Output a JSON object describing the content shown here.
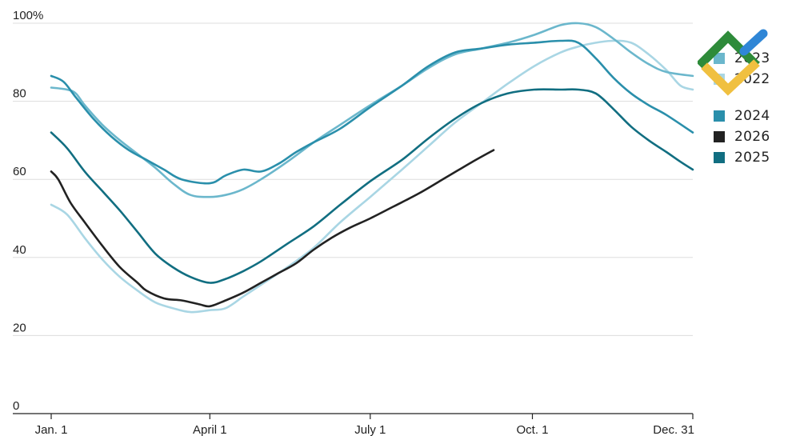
{
  "chart_data": {
    "type": "line",
    "title": "",
    "xlabel": "",
    "ylabel": "",
    "y_unit_suffix": "%",
    "ylim": [
      0,
      100
    ],
    "xlim": [
      "Jan. 1",
      "Dec. 31"
    ],
    "x_unit": "day-of-year",
    "x_ticks": [
      {
        "label": "Jan. 1",
        "day": 1
      },
      {
        "label": "April 1",
        "day": 91
      },
      {
        "label": "July 1",
        "day": 182
      },
      {
        "label": "Oct. 1",
        "day": 274
      },
      {
        "label": "Dec. 31",
        "day": 365
      }
    ],
    "y_ticks": [
      {
        "label": "0",
        "value": 0
      },
      {
        "label": "20",
        "value": 20
      },
      {
        "label": "40",
        "value": 40
      },
      {
        "label": "60",
        "value": 60
      },
      {
        "label": "80",
        "value": 80
      },
      {
        "label": "100%",
        "value": 100
      }
    ],
    "grid": "horizontal",
    "legend_placement": "right",
    "series": [
      {
        "name": "2022",
        "color": "#a9d6e4",
        "points": [
          [
            1,
            53.5
          ],
          [
            10,
            51
          ],
          [
            20,
            45
          ],
          [
            30,
            39.5
          ],
          [
            40,
            35
          ],
          [
            50,
            31.5
          ],
          [
            60,
            28.5
          ],
          [
            70,
            27
          ],
          [
            80,
            26
          ],
          [
            91,
            26.5
          ],
          [
            100,
            27
          ],
          [
            110,
            30
          ],
          [
            120,
            33
          ],
          [
            135,
            37.5
          ],
          [
            150,
            42.5
          ],
          [
            165,
            49
          ],
          [
            182,
            55.5
          ],
          [
            200,
            62.5
          ],
          [
            215,
            68.5
          ],
          [
            230,
            74.5
          ],
          [
            245,
            79.5
          ],
          [
            260,
            84.5
          ],
          [
            275,
            89
          ],
          [
            290,
            92.5
          ],
          [
            300,
            94
          ],
          [
            310,
            95
          ],
          [
            320,
            95.5
          ],
          [
            330,
            95
          ],
          [
            340,
            92
          ],
          [
            350,
            88
          ],
          [
            358,
            84
          ],
          [
            365,
            83
          ]
        ]
      },
      {
        "name": "2023",
        "color": "#6bb7cc",
        "points": [
          [
            1,
            83.5
          ],
          [
            10,
            83
          ],
          [
            15,
            82
          ],
          [
            20,
            79
          ],
          [
            30,
            74
          ],
          [
            40,
            70
          ],
          [
            50,
            66.5
          ],
          [
            60,
            63
          ],
          [
            70,
            59
          ],
          [
            80,
            56
          ],
          [
            91,
            55.5
          ],
          [
            100,
            56
          ],
          [
            110,
            57.5
          ],
          [
            120,
            60
          ],
          [
            135,
            64.5
          ],
          [
            150,
            69.5
          ],
          [
            165,
            74
          ],
          [
            182,
            79
          ],
          [
            200,
            84
          ],
          [
            215,
            88.5
          ],
          [
            230,
            92
          ],
          [
            245,
            93.5
          ],
          [
            260,
            95
          ],
          [
            275,
            97
          ],
          [
            290,
            99.5
          ],
          [
            300,
            100
          ],
          [
            310,
            99
          ],
          [
            320,
            96
          ],
          [
            330,
            92.5
          ],
          [
            340,
            89.5
          ],
          [
            350,
            87.5
          ],
          [
            365,
            86.5
          ]
        ]
      },
      {
        "name": "2024",
        "color": "#2a8fab",
        "points": [
          [
            1,
            86.5
          ],
          [
            8,
            85
          ],
          [
            15,
            81
          ],
          [
            25,
            75.5
          ],
          [
            35,
            71
          ],
          [
            45,
            67.5
          ],
          [
            55,
            65
          ],
          [
            65,
            62.5
          ],
          [
            75,
            60
          ],
          [
            91,
            59
          ],
          [
            100,
            61
          ],
          [
            110,
            62.5
          ],
          [
            120,
            62
          ],
          [
            130,
            64
          ],
          [
            140,
            67
          ],
          [
            150,
            69.5
          ],
          [
            165,
            73
          ],
          [
            182,
            78.5
          ],
          [
            200,
            84
          ],
          [
            215,
            89
          ],
          [
            230,
            92.5
          ],
          [
            245,
            93.5
          ],
          [
            260,
            94.5
          ],
          [
            275,
            95
          ],
          [
            290,
            95.5
          ],
          [
            300,
            95
          ],
          [
            310,
            91
          ],
          [
            320,
            86
          ],
          [
            330,
            82
          ],
          [
            340,
            79
          ],
          [
            350,
            76.5
          ],
          [
            365,
            72
          ]
        ]
      },
      {
        "name": "2026",
        "color": "#222222",
        "points": [
          [
            1,
            62
          ],
          [
            5,
            60
          ],
          [
            12,
            54
          ],
          [
            20,
            49
          ],
          [
            30,
            43
          ],
          [
            40,
            37.5
          ],
          [
            50,
            33.5
          ],
          [
            55,
            31.5
          ],
          [
            65,
            29.5
          ],
          [
            75,
            29
          ],
          [
            85,
            28
          ],
          [
            91,
            27.5
          ],
          [
            100,
            29
          ],
          [
            110,
            31
          ],
          [
            120,
            33.5
          ],
          [
            130,
            36
          ],
          [
            140,
            38.5
          ],
          [
            150,
            42
          ],
          [
            160,
            45
          ],
          [
            170,
            47.5
          ],
          [
            182,
            50
          ],
          [
            195,
            53
          ],
          [
            210,
            56.5
          ],
          [
            225,
            60.5
          ],
          [
            240,
            64.5
          ],
          [
            252,
            67.5
          ]
        ]
      },
      {
        "name": "2025",
        "color": "#116e81",
        "points": [
          [
            1,
            72
          ],
          [
            10,
            68
          ],
          [
            20,
            62
          ],
          [
            30,
            57
          ],
          [
            40,
            52
          ],
          [
            50,
            46.5
          ],
          [
            60,
            41
          ],
          [
            70,
            37.5
          ],
          [
            80,
            35
          ],
          [
            91,
            33.5
          ],
          [
            100,
            34.5
          ],
          [
            110,
            36.5
          ],
          [
            120,
            39
          ],
          [
            135,
            43.5
          ],
          [
            150,
            48
          ],
          [
            165,
            53.5
          ],
          [
            182,
            59.5
          ],
          [
            200,
            65
          ],
          [
            215,
            70.5
          ],
          [
            230,
            75.5
          ],
          [
            245,
            79.5
          ],
          [
            260,
            82
          ],
          [
            275,
            83
          ],
          [
            290,
            83
          ],
          [
            300,
            83
          ],
          [
            310,
            82
          ],
          [
            320,
            78
          ],
          [
            330,
            73.5
          ],
          [
            340,
            70
          ],
          [
            350,
            67
          ],
          [
            358,
            64.5
          ],
          [
            365,
            62.5
          ]
        ]
      }
    ]
  },
  "legend": {
    "items": [
      {
        "label": "2023",
        "color": "#6bb7cc"
      },
      {
        "label": "2022",
        "color": "#a9d6e4"
      },
      {
        "label": "2024",
        "color": "#2a8fab"
      },
      {
        "label": "2026",
        "color": "#222222"
      },
      {
        "label": "2025",
        "color": "#116e81"
      }
    ]
  },
  "logo": {
    "name": "watermark-logo",
    "colors": [
      "#2e8b3a",
      "#2f86d6",
      "#f0c040"
    ]
  }
}
